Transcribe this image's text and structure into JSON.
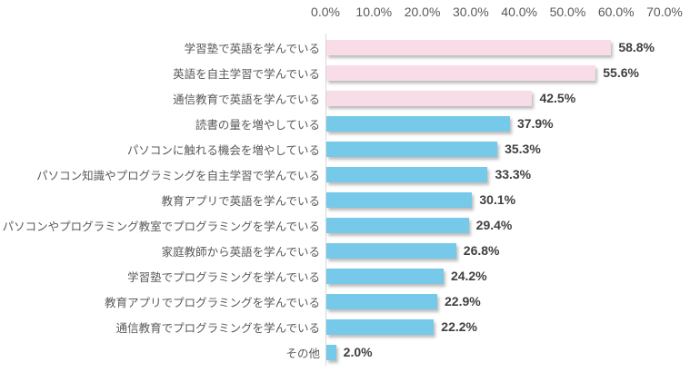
{
  "chart_data": {
    "type": "bar",
    "orientation": "horizontal",
    "title": "",
    "xlabel": "",
    "ylabel": "",
    "xlim": [
      0,
      70
    ],
    "x_ticks": [
      "0.0%",
      "10.0%",
      "20.0%",
      "30.0%",
      "40.0%",
      "50.0%",
      "60.0%",
      "70.0%"
    ],
    "grid": false,
    "legend": false,
    "categories": [
      "学習塾で英語を学んでいる",
      "英語を自主学習で学んでいる",
      "通信教育で英語を学んでいる",
      "読書の量を増やしている",
      "パソコンに触れる機会を増やしている",
      "パソコン知識やプログラミングを自主学習で学んでいる",
      "教育アプリで英語を学んでいる",
      "パソコンやプログラミング教室でプログラミングを学んでいる",
      "家庭教師から英語を学んでいる",
      "学習塾でプログラミングを学んでいる",
      "教育アプリでプログラミングを学んでいる",
      "通信教育でプログラミングを学んでいる",
      "その他"
    ],
    "values": [
      58.8,
      55.6,
      42.5,
      37.9,
      35.3,
      33.3,
      30.1,
      29.4,
      26.8,
      24.2,
      22.9,
      22.2,
      2.0
    ],
    "value_labels": [
      "58.8%",
      "55.6%",
      "42.5%",
      "37.9%",
      "35.3%",
      "33.3%",
      "30.1%",
      "29.4%",
      "26.8%",
      "24.2%",
      "22.9%",
      "22.2%",
      "2.0%"
    ],
    "bar_color_keys": [
      "pink",
      "pink",
      "pink",
      "blue",
      "blue",
      "blue",
      "blue",
      "blue",
      "blue",
      "blue",
      "blue",
      "blue",
      "blue"
    ],
    "colors": {
      "pink": "#F8DCE8",
      "blue": "#76C9E9",
      "axis_line": "#D9D9D9",
      "tick_label": "#595959",
      "category_label": "#595959",
      "value_label": "#404040",
      "background": "#FFFFFF"
    }
  }
}
